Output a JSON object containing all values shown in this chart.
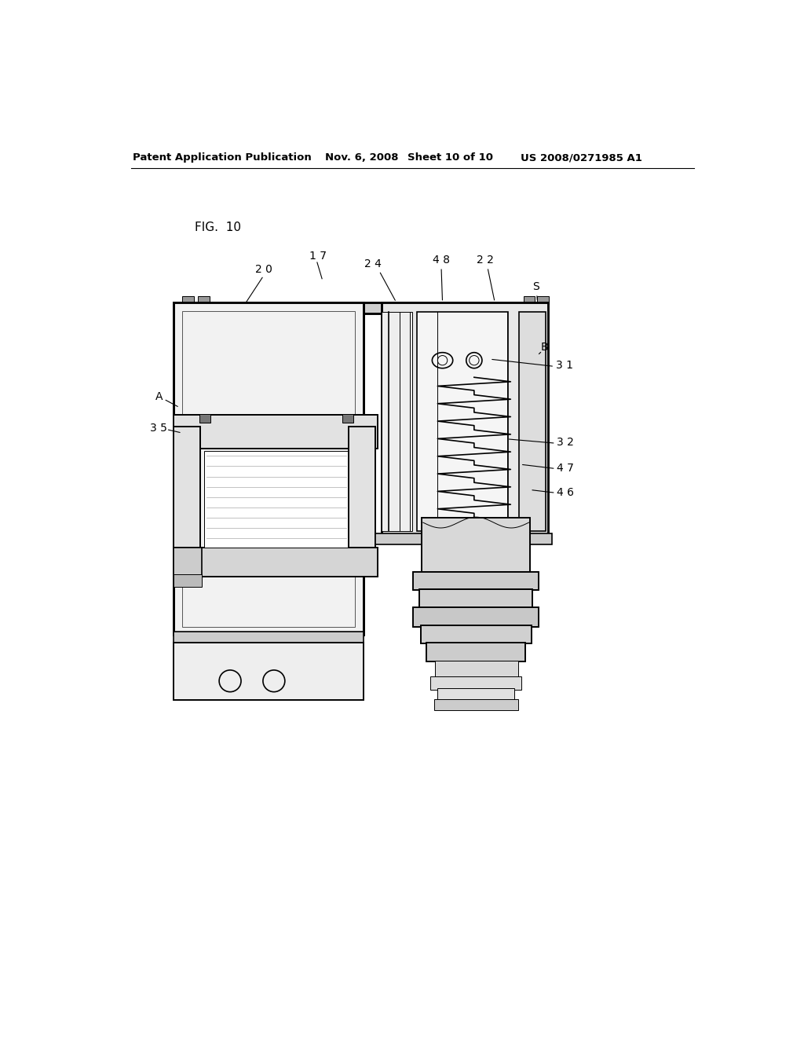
{
  "background_color": "#ffffff",
  "line_color": "#000000",
  "header_text": "Patent Application Publication",
  "header_date": "Nov. 6, 2008",
  "header_sheet": "Sheet 10 of 10",
  "header_patent": "US 2008/0271985 A1",
  "fig_label": "FIG. 10",
  "label_fontsize": 10,
  "header_fontsize": 9.5
}
